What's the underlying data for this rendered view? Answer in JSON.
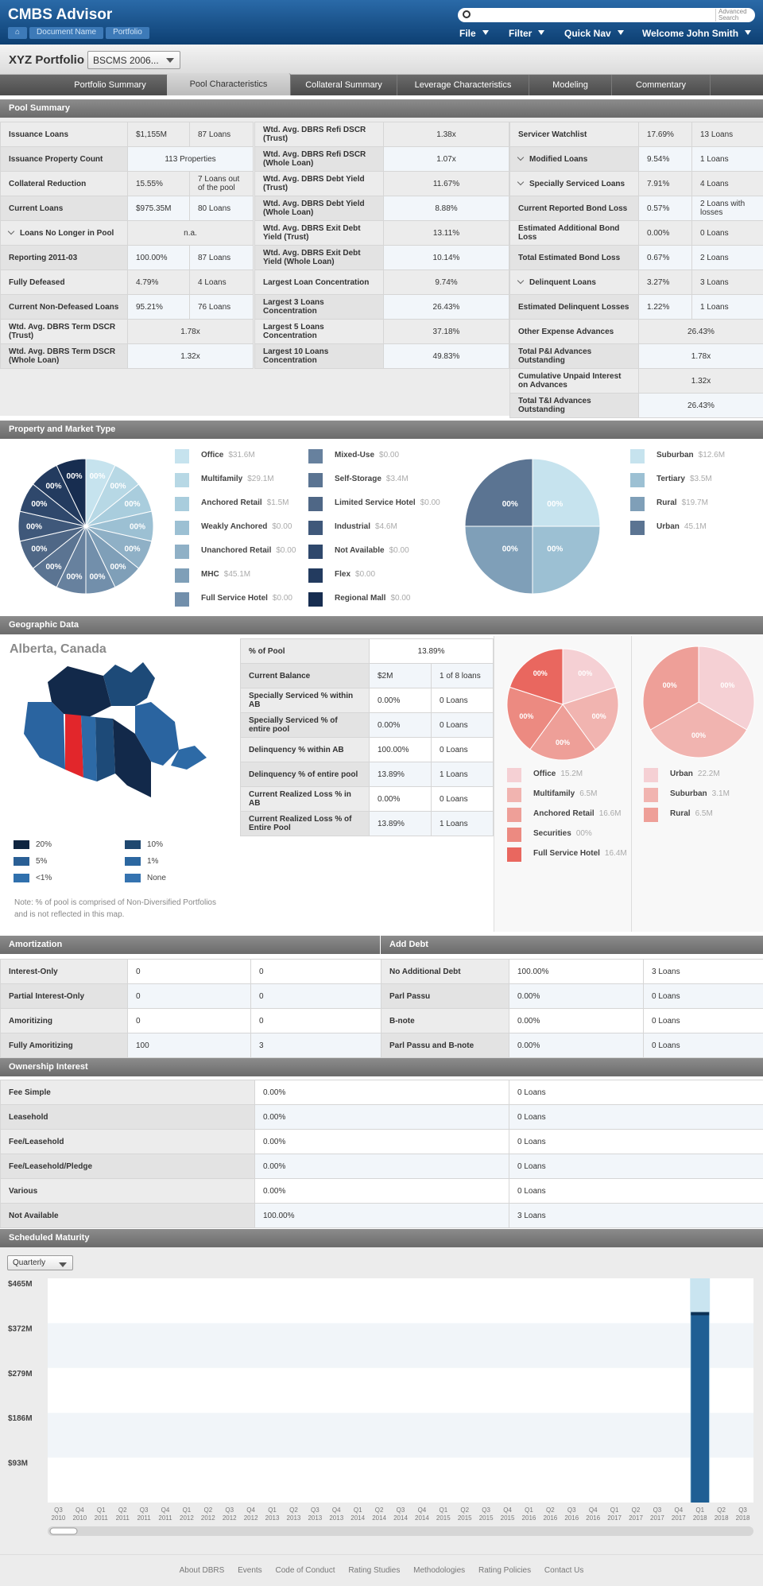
{
  "header": {
    "app_title": "CMBS Advisor",
    "breadcrumbs": [
      "Document Name",
      "Portfolio"
    ],
    "search_placeholder": "",
    "advanced_search": "Advanced Search",
    "nav": [
      "File",
      "Filter",
      "Quick Nav",
      "Welcome John Smith"
    ]
  },
  "portfolio": {
    "title": "XYZ Portfolio",
    "selector": "BSCMS 2006..."
  },
  "tabs": [
    "Portfolio Summary",
    "Pool Characteristics",
    "Collateral Summary",
    "Leverage Characteristics",
    "Modeling",
    "Commentary"
  ],
  "sections": {
    "pool_summary": "Pool Summary",
    "property_market": "Property and Market Type",
    "geographic": "Geographic Data",
    "amortization": "Amortization",
    "add_debt": "Add Debt",
    "ownership": "Ownership Interest",
    "maturity": "Scheduled Maturity"
  },
  "pool_summary": {
    "col1": [
      [
        "Issuance Loans",
        "$1,155M",
        "87 Loans"
      ],
      [
        "Issuance Property Count",
        "113 Properties",
        ""
      ],
      [
        "Collateral Reduction",
        "15.55%",
        "7 Loans out of the pool"
      ],
      [
        "Current Loans",
        "$975.35M",
        "80 Loans"
      ],
      [
        "Loans No Longer in Pool",
        "n.a.",
        ""
      ],
      [
        "Reporting 2011-03",
        "100.00%",
        "87 Loans"
      ],
      [
        "Fully Defeased",
        "4.79%",
        "4 Loans"
      ],
      [
        "Current Non-Defeased Loans",
        "95.21%",
        "76 Loans"
      ],
      [
        "Wtd. Avg. DBRS Term DSCR (Trust)",
        "1.78x",
        ""
      ],
      [
        "Wtd. Avg. DBRS Term DSCR (Whole Loan)",
        "1.32x",
        ""
      ]
    ],
    "col2": [
      [
        "Wtd. Avg. DBRS Refi DSCR (Trust)",
        "1.38x"
      ],
      [
        "Wtd. Avg. DBRS Refi DSCR (Whole Loan)",
        "1.07x"
      ],
      [
        "Wtd. Avg. DBRS Debt Yield (Trust)",
        "11.67%"
      ],
      [
        "Wtd. Avg. DBRS Debt Yield (Whole Loan)",
        "8.88%"
      ],
      [
        "Wtd. Avg. DBRS Exit Debt Yield (Trust)",
        "13.11%"
      ],
      [
        "Wtd. Avg. DBRS Exit Debt Yield (Whole Loan)",
        "10.14%"
      ],
      [
        "Largest Loan Concentration",
        "9.74%"
      ],
      [
        "Largest 3 Loans Concentration",
        "26.43%"
      ],
      [
        "Largest 5 Loans Concentration",
        "37.18%"
      ],
      [
        "Largest 10 Loans Concentration",
        "49.83%"
      ]
    ],
    "col3": [
      [
        "Servicer Watchlist",
        "17.69%",
        "13 Loans"
      ],
      [
        "Modified Loans",
        "9.54%",
        "1 Loans"
      ],
      [
        "Specially Serviced Loans",
        "7.91%",
        "4 Loans"
      ],
      [
        "Current Reported Bond Loss",
        "0.57%",
        "2 Loans with losses"
      ],
      [
        "Estimated Additional Bond Loss",
        "0.00%",
        "0 Loans"
      ],
      [
        "Total Estimated Bond Loss",
        "0.67%",
        "2 Loans"
      ],
      [
        "Delinquent Loans",
        "3.27%",
        "3 Loans"
      ],
      [
        "Estimated Delinquent Losses",
        "1.22%",
        "1 Loans"
      ],
      [
        "Other Expense Advances",
        "26.43%",
        ""
      ],
      [
        "Total P&I Advances Outstanding",
        "1.78x",
        ""
      ],
      [
        "Cumulative Unpaid Interest on Advances",
        "1.32x",
        ""
      ],
      [
        "Total T&I Advances Outstanding",
        "26.43%",
        ""
      ]
    ]
  },
  "property_types": [
    {
      "name": "Office",
      "value": "$31.6M",
      "color": "#c6e3ee"
    },
    {
      "name": "Multifamily",
      "value": "$29.1M",
      "color": "#b7d8e5"
    },
    {
      "name": "Anchored Retail",
      "value": "$1.5M",
      "color": "#a9cddd"
    },
    {
      "name": "Weakly Anchored",
      "value": "$0.00",
      "color": "#9cc0d3"
    },
    {
      "name": "Unanchored Retail",
      "value": "$0.00",
      "color": "#8fb0c6"
    },
    {
      "name": "MHC",
      "value": "$45.1M",
      "color": "#7f9fb8"
    },
    {
      "name": "Full Service Hotel",
      "value": "$0.00",
      "color": "#728fab"
    },
    {
      "name": "Mixed-Use",
      "value": "$0.00",
      "color": "#67819e"
    },
    {
      "name": "Self-Storage",
      "value": "$3.4M",
      "color": "#5b7492"
    },
    {
      "name": "Limited Service Hotel",
      "value": "$0.00",
      "color": "#4f6786"
    },
    {
      "name": "Industrial",
      "value": "$4.6M",
      "color": "#3f587a"
    },
    {
      "name": "Not Available",
      "value": "$0.00",
      "color": "#2f486c"
    },
    {
      "name": "Flex",
      "value": "$0.00",
      "color": "#233b5f"
    },
    {
      "name": "Regional Mall",
      "value": "$0.00",
      "color": "#172d50"
    }
  ],
  "property_pie_label": "00%",
  "market_types": [
    {
      "name": "Suburban",
      "value": "$12.6M",
      "color": "#c6e3ee"
    },
    {
      "name": "Tertiary",
      "value": "$3.5M",
      "color": "#9cc0d3"
    },
    {
      "name": "Rural",
      "value": "$19.7M",
      "color": "#7f9fb8"
    },
    {
      "name": "Urban",
      "value": "45.1M",
      "color": "#5b7492"
    }
  ],
  "geo": {
    "region": "Alberta, Canada",
    "rows": [
      [
        "% of Pool",
        "13.89%",
        ""
      ],
      [
        "Current Balance",
        "$2M",
        "1 of 8 loans"
      ],
      [
        "Specially Serviced % within AB",
        "0.00%",
        "0 Loans"
      ],
      [
        "Specially Serviced % of entire pool",
        "0.00%",
        "0 Loans"
      ],
      [
        "Delinquency % within AB",
        "100.00%",
        "0 Loans"
      ],
      [
        "Delinquency % of entire pool",
        "13.89%",
        "1 Loans"
      ],
      [
        "Current Realized Loss % in AB",
        "0.00%",
        "0 Loans"
      ],
      [
        "Current Realized Loss % of Entire Pool",
        "13.89%",
        "1 Loans"
      ]
    ],
    "map_legend": [
      {
        "label": "20%",
        "color": "#0f2540"
      },
      {
        "label": "10%",
        "color": "#1f4870"
      },
      {
        "label": "5%",
        "color": "#2a5f95"
      },
      {
        "label": "1%",
        "color": "#2c67a0"
      },
      {
        "label": "<1%",
        "color": "#3070ad"
      },
      {
        "label": "None",
        "color": "#3573b0"
      }
    ],
    "note": "Note: % of pool is comprised of Non-Diversified Portfolios and is not reflected in this map.",
    "property_types": [
      {
        "name": "Office",
        "value": "15.2M",
        "color": "#f5d0d4"
      },
      {
        "name": "Multifamily",
        "value": "6.5M",
        "color": "#f1b4b0"
      },
      {
        "name": "Anchored Retail",
        "value": "16.6M",
        "color": "#ee9f98"
      },
      {
        "name": "Securities",
        "value": "00%",
        "color": "#ec8a81"
      },
      {
        "name": "Full Service Hotel",
        "value": "16.4M",
        "color": "#e9675f"
      }
    ],
    "market_types": [
      {
        "name": "Urban",
        "value": "22.2M",
        "color": "#f5d0d4"
      },
      {
        "name": "Suburban",
        "value": "3.1M",
        "color": "#f1b4b0"
      },
      {
        "name": "Rural",
        "value": "6.5M",
        "color": "#ee9f98"
      }
    ],
    "pie_label": "00%"
  },
  "amortization": [
    [
      "Interest-Only",
      "0",
      "0"
    ],
    [
      "Partial Interest-Only",
      "0",
      "0"
    ],
    [
      "Amoritizing",
      "0",
      "0"
    ],
    [
      "Fully Amoritizing",
      "100",
      "3"
    ]
  ],
  "add_debt": [
    [
      "No Additional Debt",
      "100.00%",
      "3 Loans"
    ],
    [
      "Parl Passu",
      "0.00%",
      "0 Loans"
    ],
    [
      "B-note",
      "0.00%",
      "0 Loans"
    ],
    [
      "Parl Passu and B-note",
      "0.00%",
      "0 Loans"
    ]
  ],
  "ownership": [
    [
      "Fee Simple",
      "0.00%",
      "0 Loans"
    ],
    [
      "Leasehold",
      "0.00%",
      "0 Loans"
    ],
    [
      "Fee/Leasehold",
      "0.00%",
      "0 Loans"
    ],
    [
      "Fee/Leasehold/Pledge",
      "0.00%",
      "0 Loans"
    ],
    [
      "Various",
      "0.00%",
      "0 Loans"
    ],
    [
      "Not Available",
      "100.00%",
      "3 Loans"
    ]
  ],
  "maturity": {
    "period": "Quarterly"
  },
  "chart_data": {
    "type": "bar",
    "y_ticks": [
      "$465M",
      "$372M",
      "$279M",
      "$186M",
      "$93M"
    ],
    "ylim": [
      0,
      465
    ],
    "categories": [
      "Q3 2010",
      "Q4 2010",
      "Q1 2011",
      "Q2 2011",
      "Q3 2011",
      "Q4 2011",
      "Q1 2012",
      "Q2 2012",
      "Q3 2012",
      "Q4 2012",
      "Q1 2013",
      "Q2 2013",
      "Q3 2013",
      "Q4 2013",
      "Q1 2014",
      "Q2 2014",
      "Q3 2014",
      "Q4 2014",
      "Q1 2015",
      "Q2 2015",
      "Q3 2015",
      "Q4 2015",
      "Q1 2016",
      "Q2 2016",
      "Q3 2016",
      "Q4 2016",
      "Q1 2017",
      "Q2 2017",
      "Q3 2017",
      "Q4 2017",
      "Q1 2018",
      "Q2 2018",
      "Q3 2018"
    ],
    "values": [
      0,
      0,
      0,
      0,
      0,
      0,
      0,
      0,
      0,
      0,
      0,
      0,
      0,
      0,
      0,
      0,
      0,
      0,
      0,
      0,
      0,
      0,
      0,
      0,
      0,
      0,
      0,
      0,
      0,
      0,
      395,
      0,
      0
    ],
    "highlight_index": 30,
    "highlight_color": "#c9e4f0",
    "bar_color": "#1f5f94"
  },
  "footer": [
    "About DBRS",
    "Events",
    "Code of Conduct",
    "Rating Studies",
    "Methodologies",
    "Rating Policies",
    "Contact Us"
  ]
}
